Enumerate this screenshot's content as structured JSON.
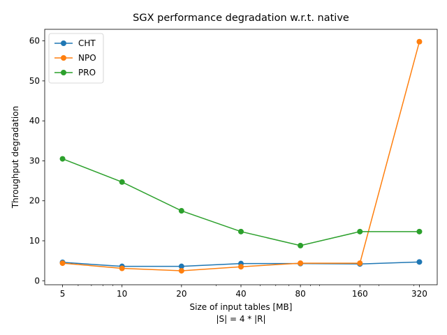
{
  "chart_data": {
    "type": "line",
    "title": "SGX performance degradation w.r.t. native",
    "xlabel": "Size of input tables [MB]",
    "xlabel2": "|S| = 4 * |R|",
    "ylabel": "Throughput degradation",
    "x_scale": "log2",
    "x": [
      5,
      10,
      20,
      40,
      80,
      160,
      320
    ],
    "x_tick_labels": [
      "5",
      "10",
      "20",
      "40",
      "80",
      "160",
      "320"
    ],
    "ylim": [
      -1.0,
      62.9
    ],
    "y_ticks": [
      0,
      10,
      20,
      30,
      40,
      50,
      60
    ],
    "grid": false,
    "legend_position": "top-left",
    "series": [
      {
        "name": "CHT",
        "color": "#1f77b4",
        "values": [
          4.6,
          3.6,
          3.6,
          4.3,
          4.3,
          4.2,
          4.7
        ]
      },
      {
        "name": "NPO",
        "color": "#ff7f0e",
        "values": [
          4.4,
          3.1,
          2.5,
          3.5,
          4.4,
          4.4,
          59.8
        ]
      },
      {
        "name": "PRO",
        "color": "#2ca02c",
        "values": [
          30.5,
          24.7,
          17.5,
          12.3,
          8.8,
          12.3,
          12.3
        ]
      }
    ]
  }
}
